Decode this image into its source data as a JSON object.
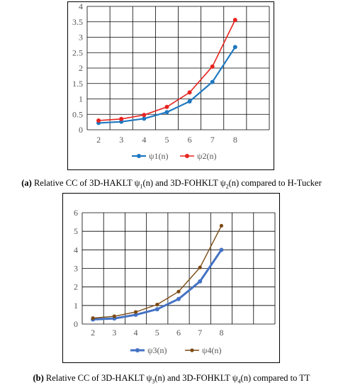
{
  "chart_data": [
    {
      "type": "line",
      "panel": "a",
      "x": [
        2,
        3,
        4,
        5,
        6,
        7,
        8
      ],
      "xticks": [
        "2",
        "3",
        "4",
        "5",
        "6",
        "7",
        "8"
      ],
      "ylim": [
        0,
        4
      ],
      "yticks": [
        "0",
        "0.5",
        "1",
        "1.5",
        "2",
        "2.5",
        "3",
        "3.5",
        "4"
      ],
      "grid": true,
      "legend_position": "bottom",
      "series": [
        {
          "name": "ψ1(n)",
          "color": "#1f78c1",
          "values": [
            0.22,
            0.26,
            0.36,
            0.57,
            0.92,
            1.55,
            2.68
          ]
        },
        {
          "name": "ψ2(n)",
          "color": "#e8231f",
          "values": [
            0.3,
            0.35,
            0.48,
            0.74,
            1.21,
            2.05,
            3.56
          ]
        }
      ]
    },
    {
      "type": "line",
      "panel": "b",
      "x": [
        2,
        3,
        4,
        5,
        6,
        7,
        8
      ],
      "xticks": [
        "2",
        "3",
        "4",
        "5",
        "6",
        "7",
        "8"
      ],
      "ylim": [
        0,
        6
      ],
      "yticks": [
        "0",
        "1",
        "2",
        "3",
        "4",
        "5",
        "6"
      ],
      "grid": true,
      "legend_position": "bottom",
      "series": [
        {
          "name": "ψ3(n)",
          "color": "#4472c4",
          "values": [
            0.25,
            0.3,
            0.5,
            0.8,
            1.35,
            2.3,
            4.0
          ]
        },
        {
          "name": "ψ4(n)",
          "color": "#7b4a12",
          "values": [
            0.32,
            0.42,
            0.65,
            1.05,
            1.75,
            3.05,
            5.3
          ]
        }
      ]
    }
  ],
  "captions": {
    "a": {
      "label": "(a)",
      "t1": " Relative CC of 3D-HAKLT  ψ",
      "s1": "1",
      "t2": "(n)  and 3D-FOHKLT  ψ",
      "s2": "2",
      "t3": "(n)  compared to H-Tucker"
    },
    "b": {
      "label": "(b)",
      "t1": " Relative CC of 3D-HAKLT  ψ",
      "s1": "3",
      "t2": "(n)  and 3D-FOHKLT  ψ",
      "s2": "4",
      "t3": "(n)  compared to TT"
    }
  }
}
